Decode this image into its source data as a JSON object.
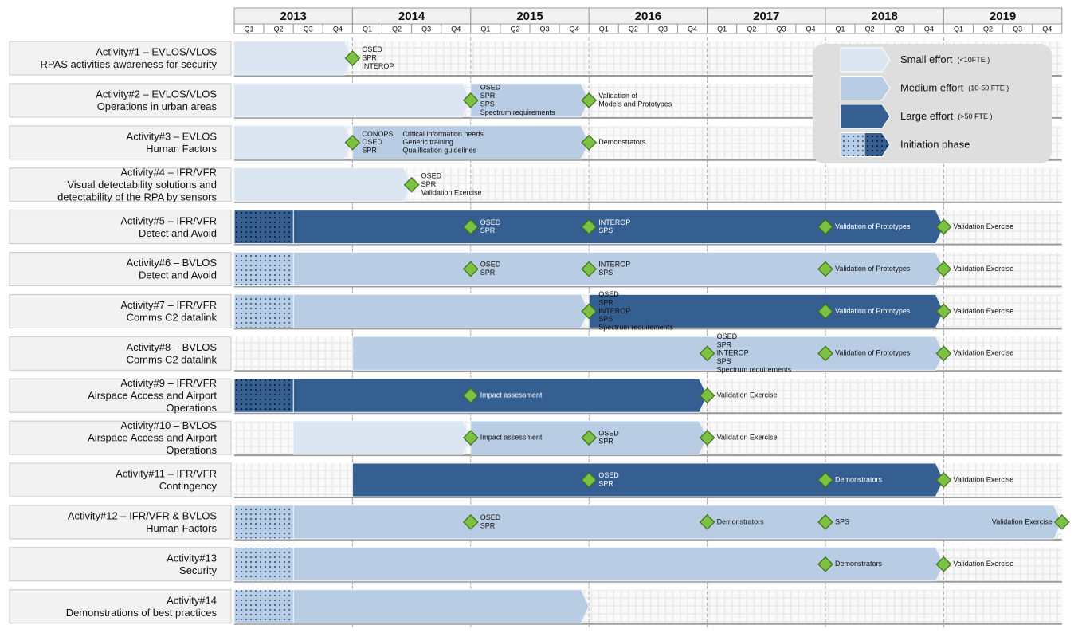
{
  "header": {
    "years": [
      {
        "label": "2013",
        "quarters": [
          "Q1",
          "Q2",
          "Q3",
          "Q4"
        ]
      },
      {
        "label": "2014",
        "quarters": [
          "Q1",
          "Q2",
          "Q3",
          "Q4"
        ]
      },
      {
        "label": "2015",
        "quarters": [
          "Q1",
          "Q2",
          "Q3",
          "Q4"
        ]
      },
      {
        "label": "2016",
        "quarters": [
          "Q1",
          "Q2",
          "Q3",
          "Q4"
        ]
      },
      {
        "label": "2017",
        "quarters": [
          "Q1",
          "Q2",
          "Q3",
          "Q4"
        ]
      },
      {
        "label": "2018",
        "quarters": [
          "Q1",
          "Q2",
          "Q3",
          "Q4"
        ]
      },
      {
        "label": "2019",
        "quarters": [
          "Q1",
          "Q2",
          "Q3",
          "Q4"
        ]
      }
    ]
  },
  "activities": [
    {
      "lines": [
        "Activity#1   – EVLOS/VLOS",
        "RPAS   activities awareness for security"
      ],
      "segments": [
        {
          "effort": "small",
          "from": 0,
          "to": 4
        }
      ],
      "milestones": [
        {
          "at": 4,
          "lines": [
            "OSED",
            "SPR",
            "INTEROP"
          ]
        }
      ]
    },
    {
      "lines": [
        "Activity#2   – EVLOS/VLOS",
        "Operations in urban areas"
      ],
      "segments": [
        {
          "effort": "small",
          "from": 0,
          "to": 8
        },
        {
          "effort": "medium",
          "from": 8,
          "to": 12
        }
      ],
      "milestones": [
        {
          "at": 8,
          "lines": [
            "OSED",
            "SPR",
            "SPS",
            "Spectrum  requirements"
          ]
        },
        {
          "at": 12,
          "lines": [
            "Validation of",
            "Models and Prototypes"
          ]
        }
      ]
    },
    {
      "lines": [
        "Activity#3   – EVLOS",
        "Human Factors"
      ],
      "segments": [
        {
          "effort": "small",
          "from": 0,
          "to": 4
        },
        {
          "effort": "medium",
          "from": 4,
          "to": 12
        }
      ],
      "milestones": [
        {
          "at": 4,
          "lines": [
            "CONOPS",
            "OSED",
            "SPR"
          ],
          "lines2": [
            "Critical  information needs",
            "Generic  training",
            "Qualification guidelines"
          ]
        },
        {
          "at": 12,
          "lines": [
            "Demonstrators"
          ]
        }
      ]
    },
    {
      "lines": [
        "Activity#4   – IFR/VFR",
        "Visual   detectability   solutions and",
        "detectability    of the RPA by sensors"
      ],
      "segments": [
        {
          "effort": "small",
          "from": 0,
          "to": 6
        }
      ],
      "milestones": [
        {
          "at": 6,
          "lines": [
            "OSED",
            "SPR",
            "Validation  Exercise"
          ]
        }
      ]
    },
    {
      "lines": [
        "Activity#5   – IFR/VFR",
        "Detect and Avoid"
      ],
      "segments": [
        {
          "effort": "initiation-large",
          "from": 0,
          "to": 2
        },
        {
          "effort": "large",
          "from": 2,
          "to": 24
        }
      ],
      "milestones": [
        {
          "at": 8,
          "lines": [
            "OSED",
            "SPR"
          ]
        },
        {
          "at": 12,
          "lines": [
            "INTEROP",
            "SPS"
          ]
        },
        {
          "at": 20,
          "lines": [
            "Validation  of Prototypes"
          ]
        },
        {
          "at": 24,
          "lines": [
            "Validation Exercise"
          ]
        }
      ]
    },
    {
      "lines": [
        "Activity#6   – BVLOS",
        "Detect and Avoid"
      ],
      "segments": [
        {
          "effort": "initiation-medium",
          "from": 0,
          "to": 2
        },
        {
          "effort": "medium",
          "from": 2,
          "to": 24
        }
      ],
      "milestones": [
        {
          "at": 8,
          "lines": [
            "OSED",
            "SPR"
          ]
        },
        {
          "at": 12,
          "lines": [
            "INTEROP",
            "SPS"
          ]
        },
        {
          "at": 20,
          "lines": [
            "Validation  of Prototypes"
          ]
        },
        {
          "at": 24,
          "lines": [
            "Validation Exercise"
          ]
        }
      ]
    },
    {
      "lines": [
        "Activity#7   – IFR/VFR",
        "Comms    C2  datalink"
      ],
      "segments": [
        {
          "effort": "initiation-medium",
          "from": 0,
          "to": 2
        },
        {
          "effort": "medium",
          "from": 2,
          "to": 12
        },
        {
          "effort": "large",
          "from": 12,
          "to": 24
        }
      ],
      "milestones": [
        {
          "at": 12,
          "lines": [
            "OSED",
            "SPR",
            "INTEROP",
            "SPS",
            "Spectrum  requirements"
          ]
        },
        {
          "at": 20,
          "lines": [
            "Validation  of Prototypes"
          ]
        },
        {
          "at": 24,
          "lines": [
            "Validation Exercise"
          ]
        }
      ]
    },
    {
      "lines": [
        "Activity#8   – BVLOS",
        "Comms    C2  datalink"
      ],
      "segments": [
        {
          "effort": "medium",
          "from": 4,
          "to": 24
        }
      ],
      "milestones": [
        {
          "at": 16,
          "lines": [
            "OSED",
            "SPR",
            "INTEROP",
            "SPS",
            "Spectrum  requirements"
          ]
        },
        {
          "at": 20,
          "lines": [
            "Validation  of Prototypes"
          ]
        },
        {
          "at": 24,
          "lines": [
            "Validation Exercise"
          ]
        }
      ]
    },
    {
      "lines": [
        "Activity#9   – IFR/VFR",
        "Airspace Access and Airport",
        "Operations"
      ],
      "segments": [
        {
          "effort": "initiation-large",
          "from": 0,
          "to": 2
        },
        {
          "effort": "large",
          "from": 2,
          "to": 16
        }
      ],
      "milestones": [
        {
          "at": 8,
          "lines": [
            "Impact assessment"
          ]
        },
        {
          "at": 16,
          "lines": [
            "Validation Exercise"
          ]
        }
      ]
    },
    {
      "lines": [
        "Activity#10   – BVLOS",
        "Airspace Access and Airport",
        "Operations"
      ],
      "segments": [
        {
          "effort": "small",
          "from": 2,
          "to": 8
        },
        {
          "effort": "medium",
          "from": 8,
          "to": 16
        }
      ],
      "milestones": [
        {
          "at": 8,
          "lines": [
            "Impact  assessment"
          ]
        },
        {
          "at": 12,
          "lines": [
            "OSED",
            "SPR"
          ]
        },
        {
          "at": 16,
          "lines": [
            "Validation Exercise"
          ]
        }
      ]
    },
    {
      "lines": [
        "Activity#11   – IFR/VFR",
        "Contingency"
      ],
      "segments": [
        {
          "effort": "large",
          "from": 4,
          "to": 24
        }
      ],
      "milestones": [
        {
          "at": 12,
          "lines": [
            "OSED",
            "SPR"
          ]
        },
        {
          "at": 20,
          "lines": [
            "Demonstrators"
          ]
        },
        {
          "at": 24,
          "lines": [
            "Validation Exercise"
          ]
        }
      ]
    },
    {
      "lines": [
        "Activity#12   – IFR/VFR & BVLOS",
        "Human Factors"
      ],
      "segments": [
        {
          "effort": "initiation-medium",
          "from": 0,
          "to": 2
        },
        {
          "effort": "medium",
          "from": 2,
          "to": 28
        }
      ],
      "milestones": [
        {
          "at": 8,
          "lines": [
            "OSED",
            "SPR"
          ]
        },
        {
          "at": 16,
          "lines": [
            "Demonstrators"
          ]
        },
        {
          "at": 20,
          "lines": [
            "SPS"
          ]
        },
        {
          "at": 28,
          "lines": [
            "Validation Exercise"
          ]
        }
      ]
    },
    {
      "lines": [
        "Activity#13",
        "Security"
      ],
      "segments": [
        {
          "effort": "initiation-medium",
          "from": 0,
          "to": 2
        },
        {
          "effort": "medium",
          "from": 2,
          "to": 24
        }
      ],
      "milestones": [
        {
          "at": 20,
          "lines": [
            "Demonstrators"
          ]
        },
        {
          "at": 24,
          "lines": [
            "Validation Exercise"
          ]
        }
      ]
    },
    {
      "lines": [
        "Activity#14",
        "Demonstrations of best practices"
      ],
      "segments": [
        {
          "effort": "initiation-medium",
          "from": 0,
          "to": 2
        },
        {
          "effort": "medium",
          "from": 2,
          "to": 12
        }
      ],
      "milestones": []
    }
  ],
  "legend": [
    {
      "label": "Small effort",
      "note": "(<10FTE )",
      "effort": "small"
    },
    {
      "label": "Medium effort",
      "note": "(10-50 FTE )",
      "effort": "medium"
    },
    {
      "label": "Large effort",
      "note": "(>50 FTE )",
      "effort": "large"
    },
    {
      "label": "Initiation phase",
      "effort": "initiation"
    }
  ]
}
